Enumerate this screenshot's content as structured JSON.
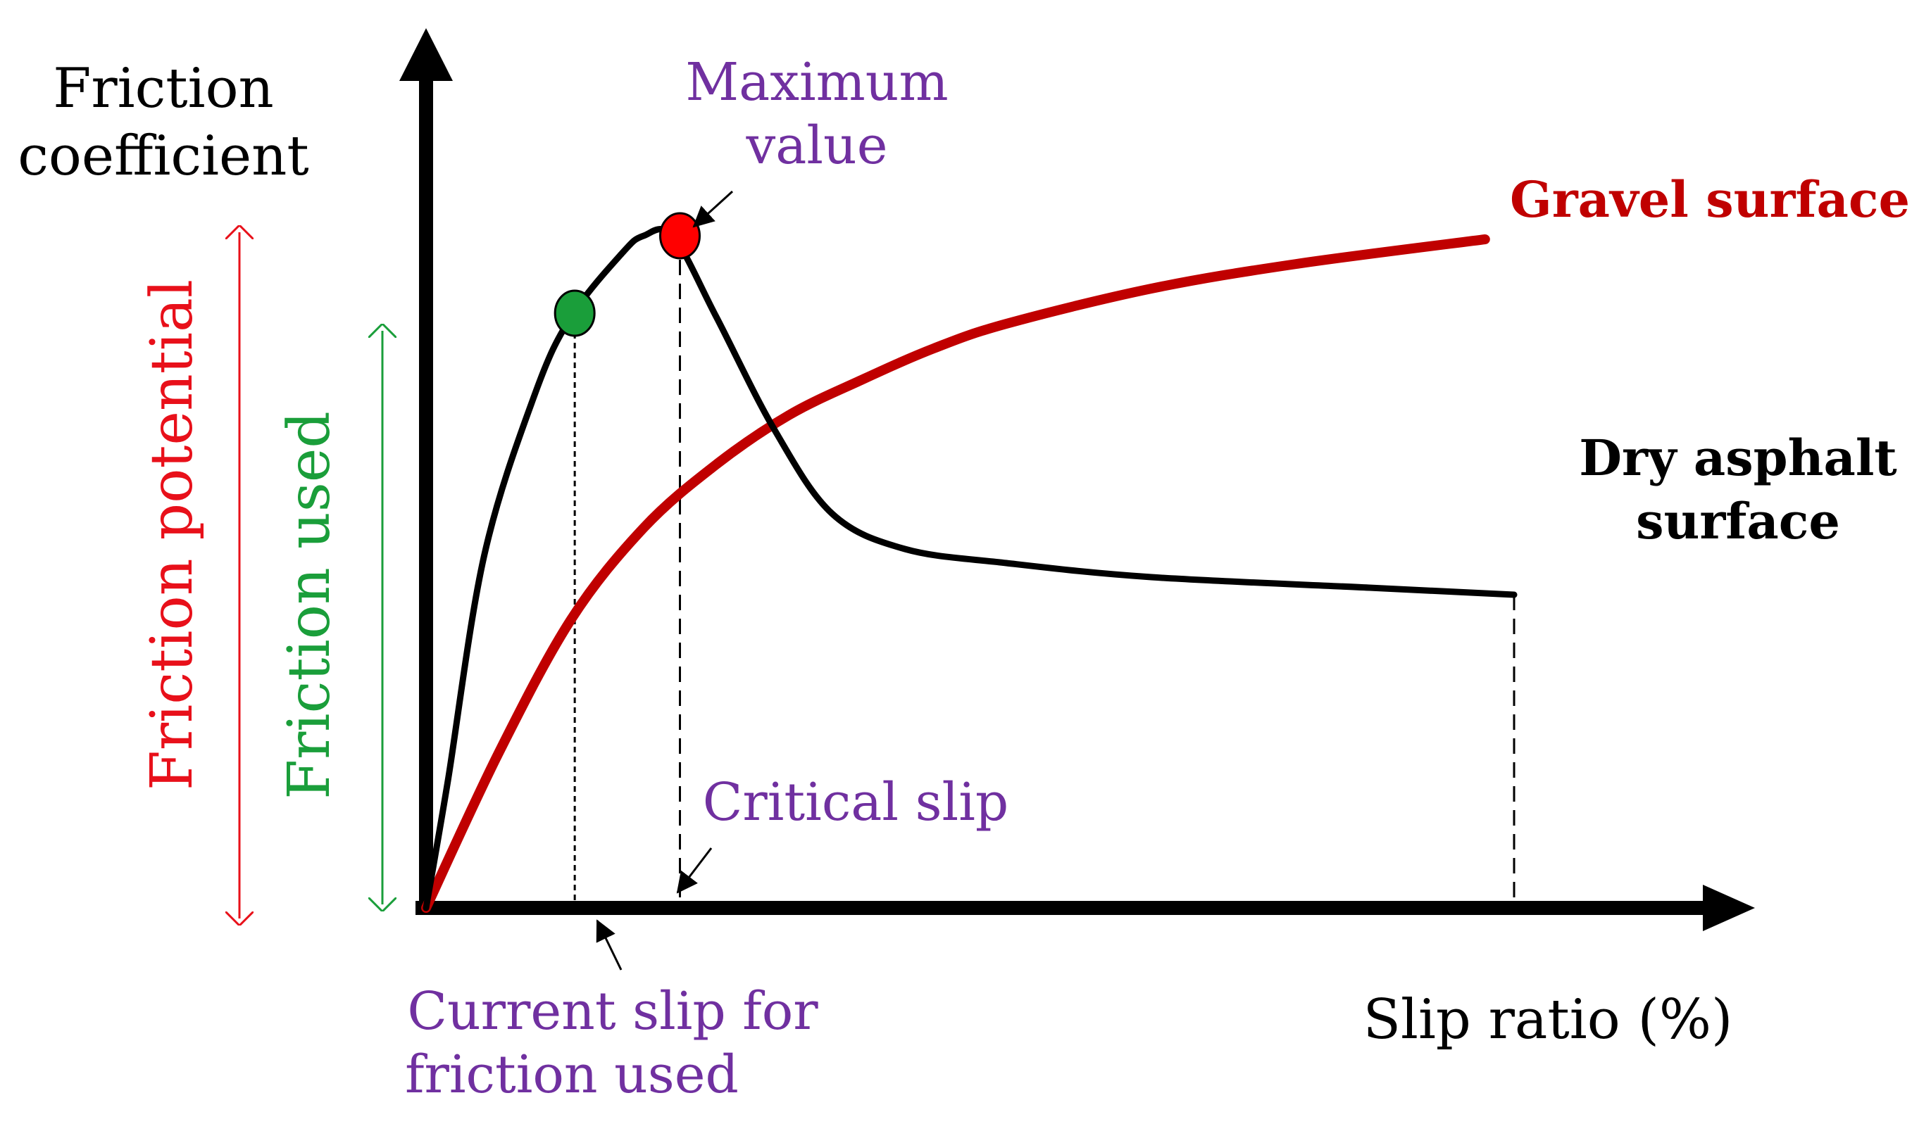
{
  "chart_data": {
    "type": "line",
    "xlabel": "Slip ratio (%)",
    "ylabel": [
      "Friction",
      "coefficient"
    ],
    "grid": false,
    "series": [
      {
        "name": [
          "Dry asphalt",
          "surface"
        ],
        "color": "#000000",
        "points": [
          [
            0,
            0
          ],
          [
            3,
            0.18
          ],
          [
            8,
            0.5
          ],
          [
            15,
            0.73
          ],
          [
            20,
            0.84
          ],
          [
            27,
            0.93
          ],
          [
            30,
            0.955
          ],
          [
            34,
            0.955
          ],
          [
            40,
            0.84
          ],
          [
            48,
            0.68
          ],
          [
            56,
            0.56
          ],
          [
            66,
            0.51
          ],
          [
            80,
            0.49
          ],
          [
            100,
            0.47
          ],
          [
            130,
            0.455
          ],
          [
            150,
            0.445
          ]
        ]
      },
      {
        "name": "Gravel surface",
        "color": "#c00000",
        "points": [
          [
            0,
            0
          ],
          [
            10,
            0.22
          ],
          [
            20,
            0.41
          ],
          [
            30,
            0.54
          ],
          [
            40,
            0.63
          ],
          [
            50,
            0.7
          ],
          [
            60,
            0.75
          ],
          [
            70,
            0.795
          ],
          [
            80,
            0.83
          ],
          [
            100,
            0.88
          ],
          [
            120,
            0.915
          ],
          [
            146,
            0.95
          ]
        ]
      }
    ],
    "markers": [
      {
        "x": 20.5,
        "y": 0.845,
        "color": "#1a9e3a"
      },
      {
        "x": 35,
        "y": 0.955,
        "color": "#ff0000"
      }
    ],
    "annotations": {
      "maximum": [
        "Maximum",
        "value"
      ],
      "critical": "Critical slip",
      "current": [
        "Current slip for",
        "friction used"
      ],
      "potential": "Friction potential",
      "used": "Friction used"
    },
    "colors": {
      "annotation": "#7030a0",
      "potential": "#e8101a",
      "used": "#1a9e3a"
    }
  }
}
